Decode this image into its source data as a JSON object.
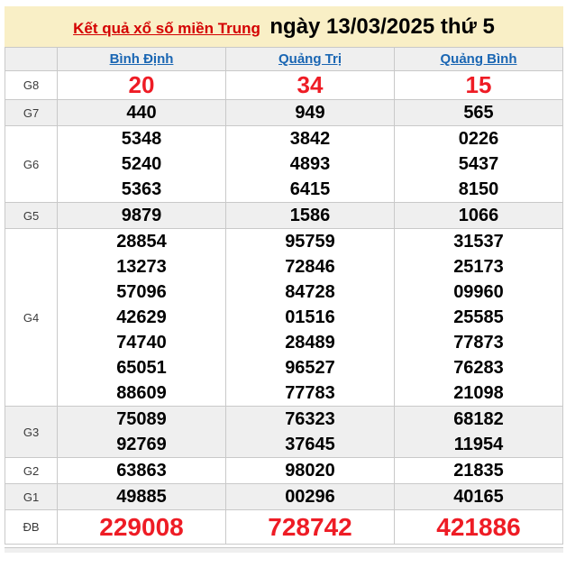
{
  "title": {
    "link_text": "Kết quả xổ số miền Trung",
    "date_text": "ngày 13/03/2025 thứ 5"
  },
  "table": {
    "columns": [
      "Bình Định",
      "Quảng Trị",
      "Quảng Bình"
    ],
    "rows": [
      {
        "label": "G8",
        "highlight": true,
        "shaded": false,
        "values": [
          [
            "20"
          ],
          [
            "34"
          ],
          [
            "15"
          ]
        ]
      },
      {
        "label": "G7",
        "highlight": false,
        "shaded": true,
        "values": [
          [
            "440"
          ],
          [
            "949"
          ],
          [
            "565"
          ]
        ]
      },
      {
        "label": "G6",
        "highlight": false,
        "shaded": false,
        "values": [
          [
            "5348",
            "5240",
            "5363"
          ],
          [
            "3842",
            "4893",
            "6415"
          ],
          [
            "0226",
            "5437",
            "8150"
          ]
        ]
      },
      {
        "label": "G5",
        "highlight": false,
        "shaded": true,
        "values": [
          [
            "9879"
          ],
          [
            "1586"
          ],
          [
            "1066"
          ]
        ]
      },
      {
        "label": "G4",
        "highlight": false,
        "shaded": false,
        "values": [
          [
            "28854",
            "13273",
            "57096",
            "42629",
            "74740",
            "65051",
            "88609"
          ],
          [
            "95759",
            "72846",
            "84728",
            "01516",
            "28489",
            "96527",
            "77783"
          ],
          [
            "31537",
            "25173",
            "09960",
            "25585",
            "77873",
            "76283",
            "21098"
          ]
        ]
      },
      {
        "label": "G3",
        "highlight": false,
        "shaded": true,
        "values": [
          [
            "75089",
            "92769"
          ],
          [
            "76323",
            "37645"
          ],
          [
            "68182",
            "11954"
          ]
        ]
      },
      {
        "label": "G2",
        "highlight": false,
        "shaded": false,
        "values": [
          [
            "63863"
          ],
          [
            "98020"
          ],
          [
            "21835"
          ]
        ]
      },
      {
        "label": "G1",
        "highlight": false,
        "shaded": true,
        "values": [
          [
            "49885"
          ],
          [
            "00296"
          ],
          [
            "40165"
          ]
        ]
      },
      {
        "label": "ĐB",
        "highlight": true,
        "shaded": false,
        "values": [
          [
            "229008"
          ],
          [
            "728742"
          ],
          [
            "421886"
          ]
        ]
      }
    ]
  },
  "colors": {
    "band_bg": "#f9efc6",
    "accent_red": "#ee1c25",
    "title_red": "#d40000",
    "link_blue": "#1a66b3",
    "stripe_bg": "#efefef",
    "border_color": "#c9c9c9"
  }
}
